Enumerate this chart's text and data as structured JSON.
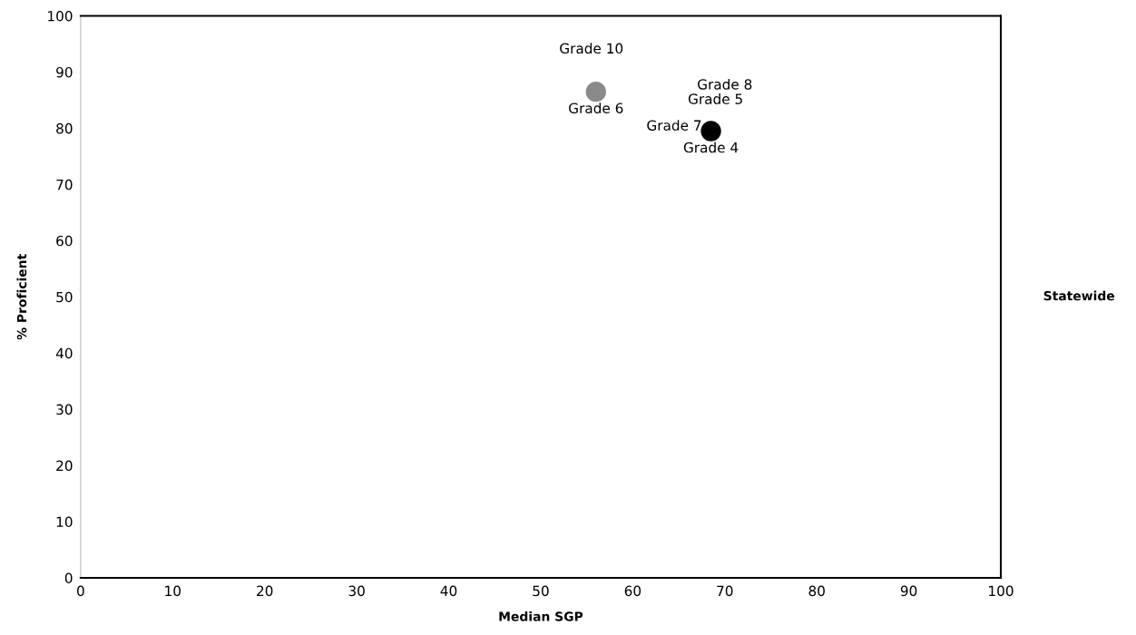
{
  "chart_data": {
    "type": "scatter",
    "xlabel": "Median SGP",
    "ylabel": "% Proficient",
    "x": [
      56,
      68.5
    ],
    "values": [
      86.5,
      79.5
    ],
    "colors": [
      "#8a8a8a",
      "#000000"
    ],
    "marker": "circle",
    "xlim": [
      0,
      100
    ],
    "ylim": [
      0,
      100
    ],
    "xticks": [
      0,
      10,
      20,
      30,
      40,
      50,
      60,
      70,
      80,
      90,
      100
    ],
    "yticks": [
      0,
      10,
      20,
      30,
      40,
      50,
      60,
      70,
      80,
      90,
      100
    ],
    "grid": false,
    "annotations": [
      "Grade 10",
      "Grade 8",
      "Grade 5",
      {
        "text": "Grade 6",
        "x": 56,
        "y": 86.5
      },
      "Grade 7",
      {
        "text": "Grade 4",
        "x": 68.5,
        "y": 79.5
      },
      "Statewide"
    ]
  }
}
